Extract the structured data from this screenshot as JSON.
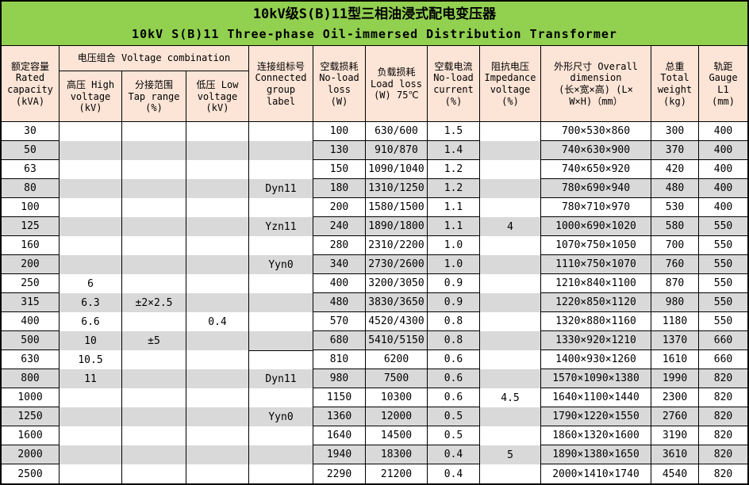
{
  "title": {
    "zh": "10kV级S(B)11型三相油浸式配电变压器",
    "en": "10kV S(B)11 Three-phase Oil-immersed Distribution Transformer"
  },
  "colors": {
    "title_bg": "#92D050",
    "header_bg": "#FCE4D6",
    "stripe_gray": "#D9D9D9",
    "border": "#000000"
  },
  "header": {
    "capacity": "额定容量\nRated\ncapacity\n(kVA)",
    "voltage_combination": "电压组合 Voltage combination",
    "high_voltage": "高压 High\nvoltage\n(kV)",
    "tap_range": "分接范围\nTap range\n(%)",
    "low_voltage": "低压 Low\nvoltage\n(kV)",
    "connected_group": "连接组标号\nConnected\ngroup\nlabel",
    "no_load_loss": "空载损耗\nNo-load\nloss\n(W)",
    "load_loss": "负载损耗\nLoad loss\n(W) 75℃",
    "no_load_current": "空载电流\nNo-load\ncurrent\n(%)",
    "impedance_voltage": "阻抗电压\nImpedance\nvoltage\n(%)",
    "overall_dimension": "外形尺寸 Overall\ndimension\n(长×宽×高) (L×\nW×H)（mm）",
    "total_weight": "总重\nTotal\nweight\n(kg)",
    "gauge": "轨距\nGauge\nL1\n(mm)"
  },
  "chart_data": {
    "type": "table",
    "columns": [
      "Rated capacity (kVA)",
      "High voltage (kV)",
      "Tap range (%)",
      "Low voltage (kV)",
      "Connected group label",
      "No-load loss (W)",
      "Load loss (W) 75℃",
      "No-load current (%)",
      "Impedance voltage (%)",
      "Overall dimension L×W×H (mm)",
      "Total weight (kg)",
      "Gauge L1 (mm)"
    ],
    "merged_no_hborder_columns": [
      1,
      2,
      3,
      4,
      8
    ],
    "group_column_border_top_row": 12,
    "rows": [
      [
        "30",
        "",
        "",
        "",
        "",
        "100",
        "630/600",
        "1.5",
        "",
        "700×530×860",
        "300",
        "400"
      ],
      [
        "50",
        "",
        "",
        "",
        "",
        "130",
        "910/870",
        "1.4",
        "",
        "740×630×900",
        "370",
        "400"
      ],
      [
        "63",
        "",
        "",
        "",
        "",
        "150",
        "1090/1040",
        "1.2",
        "",
        "740×650×920",
        "420",
        "400"
      ],
      [
        "80",
        "",
        "",
        "",
        "Dyn11",
        "180",
        "1310/1250",
        "1.2",
        "",
        "780×690×940",
        "480",
        "400"
      ],
      [
        "100",
        "",
        "",
        "",
        "",
        "200",
        "1580/1500",
        "1.1",
        "",
        "780×710×970",
        "530",
        "400"
      ],
      [
        "125",
        "",
        "",
        "",
        "Yzn11",
        "240",
        "1890/1800",
        "1.1",
        "4",
        "1000×690×1020",
        "580",
        "550"
      ],
      [
        "160",
        "",
        "",
        "",
        "",
        "280",
        "2310/2200",
        "1.0",
        "",
        "1070×750×1050",
        "700",
        "550"
      ],
      [
        "200",
        "",
        "",
        "",
        "Yyn0",
        "340",
        "2730/2600",
        "1.0",
        "",
        "1110×750×1070",
        "760",
        "550"
      ],
      [
        "250",
        "6",
        "",
        "",
        "",
        "400",
        "3200/3050",
        "0.9",
        "",
        "1210×840×1100",
        "870",
        "550"
      ],
      [
        "315",
        "6.3",
        "±2×2.5",
        "",
        "",
        "480",
        "3830/3650",
        "0.9",
        "",
        "1220×850×1120",
        "980",
        "550"
      ],
      [
        "400",
        "6.6",
        "",
        "0.4",
        "",
        "570",
        "4520/4300",
        "0.8",
        "",
        "1320×880×1160",
        "1180",
        "550"
      ],
      [
        "500",
        "10",
        "±5",
        "",
        "",
        "680",
        "5410/5150",
        "0.8",
        "",
        "1330×920×1210",
        "1370",
        "660"
      ],
      [
        "630",
        "10.5",
        "",
        "",
        "",
        "810",
        "6200",
        "0.6",
        "",
        "1400×930×1260",
        "1610",
        "660"
      ],
      [
        "800",
        "11",
        "",
        "",
        "Dyn11",
        "980",
        "7500",
        "0.6",
        "",
        "1570×1090×1380",
        "1990",
        "820"
      ],
      [
        "1000",
        "",
        "",
        "",
        "",
        "1150",
        "10300",
        "0.6",
        "4.5",
        "1640×1100×1440",
        "2300",
        "820"
      ],
      [
        "1250",
        "",
        "",
        "",
        "Yyn0",
        "1360",
        "12000",
        "0.5",
        "",
        "1790×1220×1550",
        "2760",
        "820"
      ],
      [
        "1600",
        "",
        "",
        "",
        "",
        "1640",
        "14500",
        "0.5",
        "",
        "1860×1320×1600",
        "3190",
        "820"
      ],
      [
        "2000",
        "",
        "",
        "",
        "",
        "1940",
        "18300",
        "0.4",
        "5",
        "1890×1380×1650",
        "3610",
        "820"
      ],
      [
        "2500",
        "",
        "",
        "",
        "",
        "2290",
        "21200",
        "0.4",
        "",
        "2000×1410×1740",
        "4540",
        "820"
      ]
    ]
  }
}
